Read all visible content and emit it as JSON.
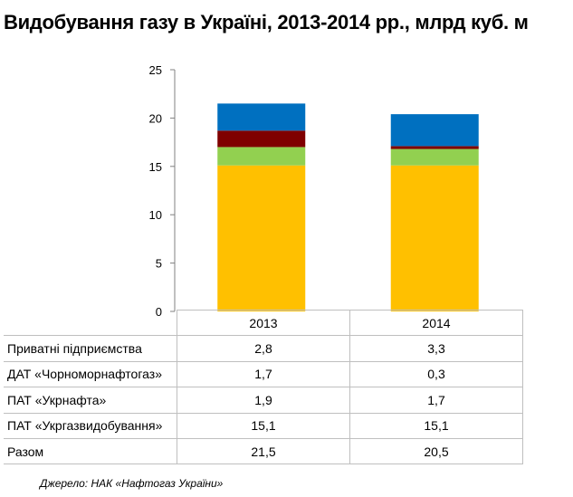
{
  "title": "Видобування газу в Україні, 2013-2014 рр., млрд куб. м",
  "source": "Джерело: НАК «Нафтогаз України»",
  "colors": {
    "ukrgaz": "#FFC000",
    "ukrnafta": "#92D050",
    "chornomor": "#7F0000",
    "private": "#0070C0",
    "axis": "#808080",
    "grid": "#bfbfbf"
  },
  "chart_data": {
    "type": "bar",
    "stacked": true,
    "categories": [
      "2013",
      "2014"
    ],
    "ylim": [
      0,
      25
    ],
    "yticks": [
      0,
      5,
      10,
      15,
      20,
      25
    ],
    "series": [
      {
        "name": "ПАТ «Укргазвидобування»",
        "values": [
          15.1,
          15.1
        ],
        "color": "#FFC000"
      },
      {
        "name": "ПАТ «Укрнафта»",
        "values": [
          1.9,
          1.7
        ],
        "color": "#92D050"
      },
      {
        "name": "ДАТ «Чорноморнафтогаз»",
        "values": [
          1.7,
          0.3
        ],
        "color": "#7F0000"
      },
      {
        "name": "Приватні підприємства",
        "values": [
          2.8,
          3.3
        ],
        "color": "#0070C0"
      }
    ],
    "table": {
      "rows": [
        {
          "label": "Приватні підприємства",
          "values": [
            "2,8",
            "3,3"
          ]
        },
        {
          "label": "ДАТ «Чорноморнафтогаз»",
          "values": [
            "1,7",
            "0,3"
          ]
        },
        {
          "label": "ПАТ «Укрнафта»",
          "values": [
            "1,9",
            "1,7"
          ]
        },
        {
          "label": "ПАТ «Укргазвидобування»",
          "values": [
            "15,1",
            "15,1"
          ]
        },
        {
          "label": "Разом",
          "values": [
            "21,5",
            "20,5"
          ]
        }
      ]
    }
  }
}
